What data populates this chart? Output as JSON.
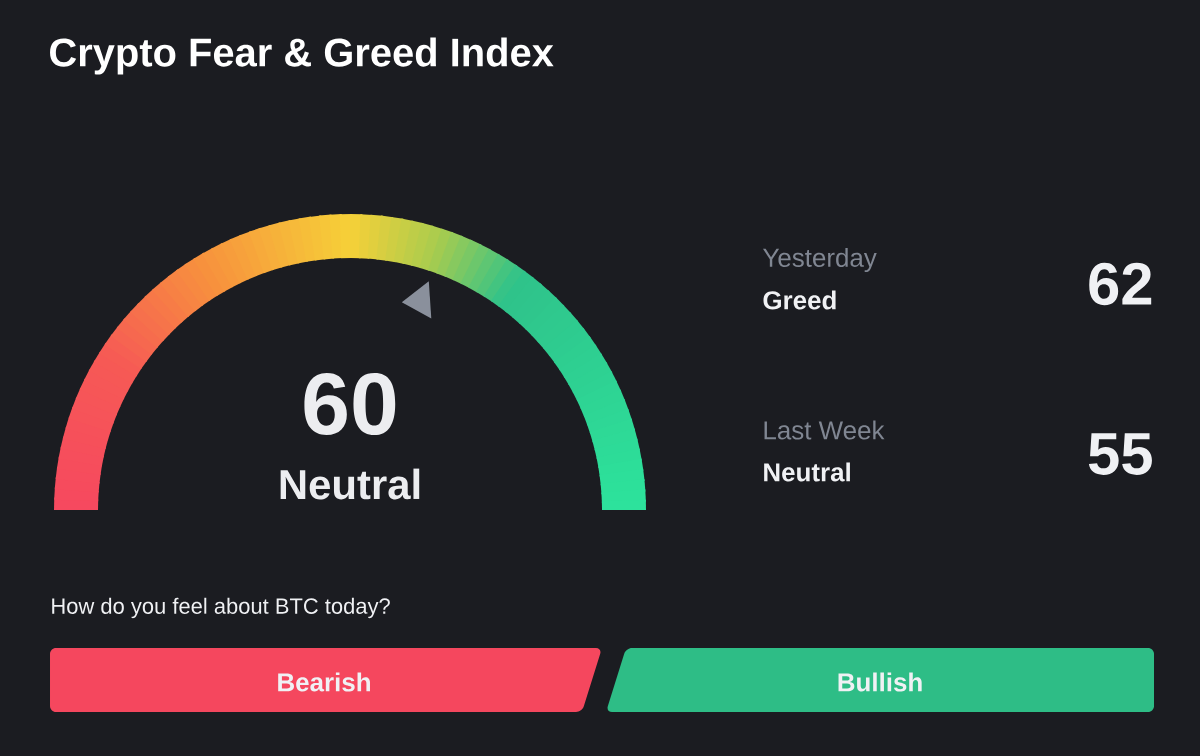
{
  "chart_data": {
    "type": "other",
    "title": "Crypto Fear & Greed Index",
    "categories": [
      "Neutral"
    ],
    "values": [
      60
    ],
    "data_labels": true,
    "annotations": [
      "Yesterday",
      "Greed",
      "62",
      "Last Week",
      "Neutral",
      "55",
      "How do you feel about BTC today?",
      "Bearish",
      "Bullish"
    ]
  }
}
